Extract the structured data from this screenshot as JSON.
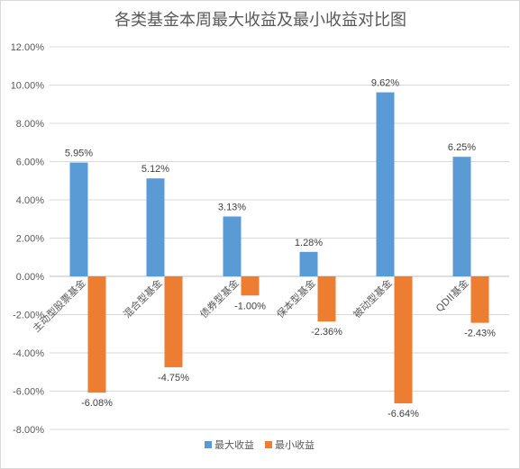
{
  "chart_data": {
    "type": "bar",
    "title": "各类基金本周最大收益及最小收益对比图",
    "categories": [
      "主动型股票基金",
      "混合型基金",
      "债券型基金",
      "保本型基金",
      "被动型基金",
      "QDII基金"
    ],
    "series": [
      {
        "name": "最大收益",
        "color": "#5b9bd5",
        "values": [
          5.95,
          5.12,
          3.13,
          1.28,
          9.62,
          6.25
        ],
        "labels": [
          "5.95%",
          "5.12%",
          "3.13%",
          "1.28%",
          "9.62%",
          "6.25%"
        ]
      },
      {
        "name": "最小收益",
        "color": "#ed7d31",
        "values": [
          -6.08,
          -4.75,
          -1.0,
          -2.36,
          -6.64,
          -2.43
        ],
        "labels": [
          "-6.08%",
          "-4.75%",
          "-1.00%",
          "-2.36%",
          "-6.64%",
          "-2.43%"
        ]
      }
    ],
    "ylim": [
      -8,
      12
    ],
    "yticks": [
      12,
      10,
      8,
      6,
      4,
      2,
      0,
      -2,
      -4,
      -6,
      -8
    ],
    "ytick_labels": [
      "12.00%",
      "10.00%",
      "8.00%",
      "6.00%",
      "4.00%",
      "2.00%",
      "0.00%",
      "-2.00%",
      "-4.00%",
      "-6.00%",
      "-8.00%"
    ],
    "grid": true,
    "legend_position": "bottom"
  }
}
